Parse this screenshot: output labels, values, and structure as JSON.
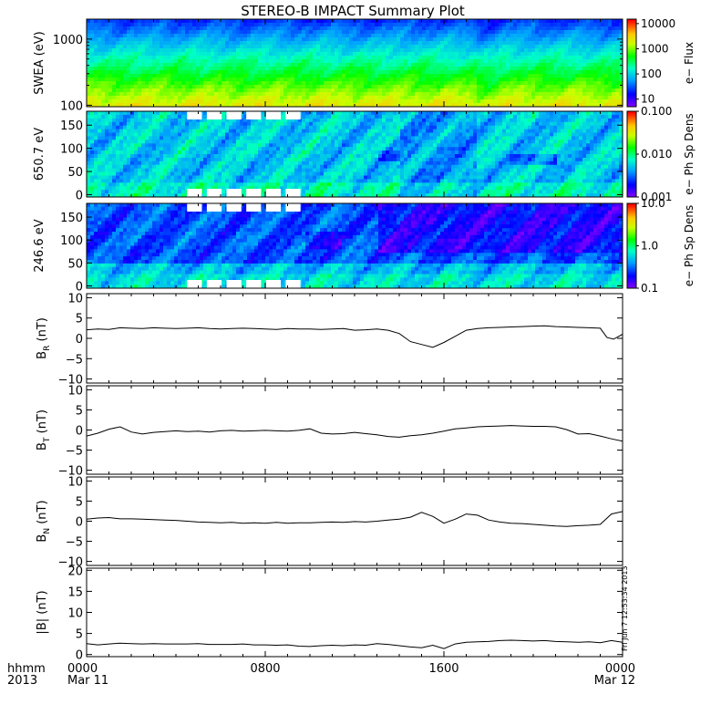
{
  "title": "STEREO-B IMPACT Summary Plot",
  "time_axis": {
    "row1_label": "hhmm",
    "row2_label": "2013",
    "ticks": [
      {
        "hour": 0,
        "label": "0000",
        "date": "Mar 11"
      },
      {
        "hour": 8,
        "label": "0800",
        "date": ""
      },
      {
        "hour": 16,
        "label": "1600",
        "date": ""
      },
      {
        "hour": 24,
        "label": "0000",
        "date": "Mar 12"
      }
    ]
  },
  "stamp": "Fri Jun  7 12:53:34 2013",
  "colors": {
    "line": "#000000",
    "missing": "#ffffff"
  },
  "chart_data": [
    {
      "type": "heatmap",
      "id": "swea",
      "ylabel": "SWEA (eV)",
      "ylog": true,
      "ylim": [
        95,
        2000
      ],
      "yticks": [
        {
          "v": 100,
          "label": "100"
        },
        {
          "v": 1000,
          "label": "1000"
        }
      ],
      "colorbar": {
        "label": "e− Flux",
        "log": true,
        "range": [
          5,
          15000
        ],
        "ticks": [
          {
            "v": 10,
            "label": "10"
          },
          {
            "v": 100,
            "label": "100"
          },
          {
            "v": 1000,
            "label": "1000"
          },
          {
            "v": 10000,
            "label": "10000"
          }
        ]
      }
    },
    {
      "type": "heatmap",
      "id": "pad650",
      "ylabel": "650.7 eV",
      "ylim": [
        -5,
        180
      ],
      "yticks": [
        {
          "v": 0,
          "label": "0"
        },
        {
          "v": 50,
          "label": "50"
        },
        {
          "v": 100,
          "label": "100"
        },
        {
          "v": 150,
          "label": "150"
        }
      ],
      "gaps_hours": [
        [
          4.5,
          9.8
        ]
      ],
      "colorbar": {
        "label": "e− Ph Sp Dens",
        "log": true,
        "range": [
          0.001,
          0.1
        ],
        "ticks": [
          {
            "v": 0.001,
            "label": "0.001"
          },
          {
            "v": 0.01,
            "label": "0.010"
          },
          {
            "v": 0.1,
            "label": "0.100"
          }
        ]
      }
    },
    {
      "type": "heatmap",
      "id": "pad246",
      "ylabel": "246.6 eV",
      "ylim": [
        -5,
        180
      ],
      "yticks": [
        {
          "v": 0,
          "label": "0"
        },
        {
          "v": 50,
          "label": "50"
        },
        {
          "v": 100,
          "label": "100"
        },
        {
          "v": 150,
          "label": "150"
        }
      ],
      "gaps_hours": [
        [
          4.5,
          9.8
        ]
      ],
      "colorbar": {
        "label": "e− Ph Sp Dens",
        "log": true,
        "range": [
          0.1,
          10
        ],
        "ticks": [
          {
            "v": 0.1,
            "label": "0.1"
          },
          {
            "v": 1,
            "label": "1.0"
          },
          {
            "v": 10,
            "label": "10.0"
          }
        ]
      }
    },
    {
      "type": "line",
      "id": "br",
      "ylabel_main": "B",
      "ylabel_sub": "R",
      "ylabel_unit": " (nT)",
      "ylim": [
        -11,
        11
      ],
      "yticks": [
        {
          "v": -10,
          "label": "−10"
        },
        {
          "v": -5,
          "label": "−5"
        },
        {
          "v": 0,
          "label": "0"
        },
        {
          "v": 5,
          "label": "5"
        },
        {
          "v": 10,
          "label": "10"
        }
      ],
      "x": [
        0,
        0.5,
        1,
        1.5,
        2,
        2.5,
        3,
        3.5,
        4,
        4.5,
        5,
        5.5,
        6,
        6.5,
        7,
        7.5,
        8,
        8.5,
        9,
        9.5,
        10,
        10.5,
        11,
        11.5,
        12,
        12.5,
        13,
        13.5,
        14,
        14.5,
        15,
        15.5,
        16,
        16.5,
        17,
        17.5,
        18,
        18.5,
        19,
        19.5,
        20,
        20.5,
        21,
        21.5,
        22,
        22.5,
        23,
        23.3,
        23.6,
        24
      ],
      "values": [
        2.1,
        2.3,
        2.2,
        2.6,
        2.5,
        2.4,
        2.6,
        2.5,
        2.4,
        2.5,
        2.6,
        2.4,
        2.3,
        2.4,
        2.5,
        2.4,
        2.3,
        2.2,
        2.4,
        2.3,
        2.3,
        2.2,
        2.3,
        2.4,
        2.0,
        2.1,
        2.3,
        2.0,
        1.2,
        -0.8,
        -1.5,
        -2.2,
        -1.0,
        0.5,
        2.0,
        2.4,
        2.6,
        2.7,
        2.8,
        2.9,
        3.0,
        3.1,
        2.9,
        2.8,
        2.7,
        2.6,
        2.5,
        0.2,
        -0.2,
        1.0
      ]
    },
    {
      "type": "line",
      "id": "bt",
      "ylabel_main": "B",
      "ylabel_sub": "T",
      "ylabel_unit": " (nT)",
      "ylim": [
        -11,
        11
      ],
      "yticks": [
        {
          "v": -10,
          "label": "−10"
        },
        {
          "v": -5,
          "label": "−5"
        },
        {
          "v": 0,
          "label": "0"
        },
        {
          "v": 5,
          "label": "5"
        },
        {
          "v": 10,
          "label": "10"
        }
      ],
      "x": [
        0,
        0.5,
        1,
        1.5,
        2,
        2.5,
        3,
        3.5,
        4,
        4.5,
        5,
        5.5,
        6,
        6.5,
        7,
        7.5,
        8,
        8.5,
        9,
        9.5,
        10,
        10.5,
        11,
        11.5,
        12,
        12.5,
        13,
        13.5,
        14,
        14.5,
        15,
        15.5,
        16,
        16.5,
        17,
        17.5,
        18,
        18.5,
        19,
        19.5,
        20,
        20.5,
        21,
        21.5,
        22,
        22.5,
        23,
        23.5,
        24
      ],
      "values": [
        -1.5,
        -0.8,
        0.2,
        0.8,
        -0.5,
        -1.0,
        -0.6,
        -0.4,
        -0.2,
        -0.4,
        -0.3,
        -0.5,
        -0.2,
        -0.1,
        -0.3,
        -0.2,
        -0.1,
        -0.2,
        -0.3,
        -0.1,
        0.3,
        -0.8,
        -1.0,
        -0.9,
        -0.6,
        -0.9,
        -1.2,
        -1.6,
        -1.8,
        -1.4,
        -1.2,
        -0.8,
        -0.3,
        0.3,
        0.5,
        0.8,
        0.9,
        1.0,
        1.1,
        1.0,
        0.9,
        0.9,
        0.8,
        0.1,
        -1.0,
        -0.9,
        -1.5,
        -2.2,
        -2.8
      ]
    },
    {
      "type": "line",
      "id": "bn",
      "ylabel_main": "B",
      "ylabel_sub": "N",
      "ylabel_unit": " (nT)",
      "ylim": [
        -11,
        11
      ],
      "yticks": [
        {
          "v": -10,
          "label": "−10"
        },
        {
          "v": -5,
          "label": "−5"
        },
        {
          "v": 0,
          "label": "0"
        },
        {
          "v": 5,
          "label": "5"
        },
        {
          "v": 10,
          "label": "10"
        }
      ],
      "x": [
        0,
        0.5,
        1,
        1.5,
        2,
        2.5,
        3,
        3.5,
        4,
        4.5,
        5,
        5.5,
        6,
        6.5,
        7,
        7.5,
        8,
        8.5,
        9,
        9.5,
        10,
        10.5,
        11,
        11.5,
        12,
        12.5,
        13,
        13.5,
        14,
        14.5,
        15,
        15.5,
        16,
        16.5,
        17,
        17.5,
        18,
        18.5,
        19,
        19.5,
        20,
        20.5,
        21,
        21.5,
        22,
        22.5,
        23,
        23.5,
        24
      ],
      "values": [
        0.5,
        0.8,
        0.9,
        0.6,
        0.6,
        0.5,
        0.4,
        0.3,
        0.2,
        0.0,
        -0.2,
        -0.3,
        -0.4,
        -0.3,
        -0.5,
        -0.4,
        -0.5,
        -0.3,
        -0.5,
        -0.4,
        -0.4,
        -0.3,
        -0.2,
        -0.3,
        -0.1,
        -0.2,
        0.0,
        0.3,
        0.5,
        1.0,
        2.2,
        1.2,
        -0.5,
        0.5,
        1.8,
        1.5,
        0.3,
        -0.2,
        -0.5,
        -0.6,
        -0.8,
        -1.0,
        -1.2,
        -1.3,
        -1.1,
        -1.0,
        -0.8,
        1.8,
        2.4
      ]
    },
    {
      "type": "line",
      "id": "bmag",
      "ylabel_main": "|B| (nT)",
      "ylabel_sub": "",
      "ylabel_unit": "",
      "ylim": [
        -0.5,
        20.5
      ],
      "yticks": [
        {
          "v": 0,
          "label": "0"
        },
        {
          "v": 5,
          "label": "5"
        },
        {
          "v": 10,
          "label": "10"
        },
        {
          "v": 15,
          "label": "15"
        },
        {
          "v": 20,
          "label": "20"
        }
      ],
      "x": [
        0,
        0.5,
        1,
        1.5,
        2,
        2.5,
        3,
        3.5,
        4,
        4.5,
        5,
        5.5,
        6,
        6.5,
        7,
        7.5,
        8,
        8.5,
        9,
        9.5,
        10,
        10.5,
        11,
        11.5,
        12,
        12.5,
        13,
        13.5,
        14,
        14.5,
        15,
        15.5,
        16,
        16.5,
        17,
        17.5,
        18,
        18.5,
        19,
        19.5,
        20,
        20.5,
        21,
        21.5,
        22,
        22.5,
        23,
        23.5,
        24
      ],
      "values": [
        2.6,
        2.3,
        2.5,
        2.7,
        2.6,
        2.5,
        2.6,
        2.5,
        2.5,
        2.5,
        2.6,
        2.4,
        2.4,
        2.4,
        2.5,
        2.3,
        2.3,
        2.2,
        2.3,
        2.0,
        1.9,
        2.1,
        2.2,
        2.1,
        2.3,
        2.2,
        2.6,
        2.4,
        2.1,
        1.8,
        1.6,
        2.2,
        1.4,
        2.5,
        2.9,
        3.0,
        3.1,
        3.3,
        3.4,
        3.3,
        3.2,
        3.3,
        3.1,
        3.0,
        2.9,
        3.0,
        2.8,
        3.3,
        2.9
      ]
    }
  ]
}
